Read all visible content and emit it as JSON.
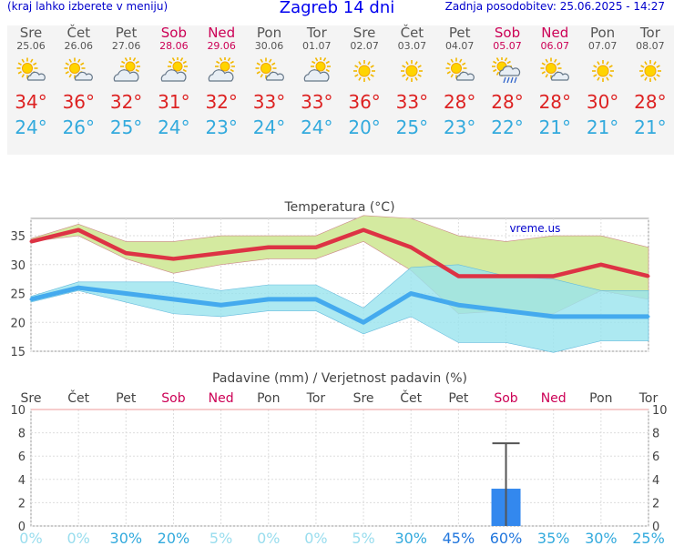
{
  "header": {
    "menu_hint": "(kraj lahko izberete v meniju)",
    "title": "Zagreb 14 dni",
    "updated": "Zadnja posodobitev: 25.06.2025 - 14:27"
  },
  "days": [
    {
      "name": "Sre",
      "date": "25.06",
      "weekend": false,
      "icon": "sun-cloud-icon",
      "max": "34°",
      "min": "24°"
    },
    {
      "name": "Čet",
      "date": "26.06",
      "weekend": false,
      "icon": "sun-cloud-icon",
      "max": "36°",
      "min": "26°"
    },
    {
      "name": "Pet",
      "date": "27.06",
      "weekend": false,
      "icon": "cloudy-sun-icon",
      "max": "32°",
      "min": "25°"
    },
    {
      "name": "Sob",
      "date": "28.06",
      "weekend": true,
      "icon": "cloudy-sun-icon",
      "max": "31°",
      "min": "24°"
    },
    {
      "name": "Ned",
      "date": "29.06",
      "weekend": true,
      "icon": "cloudy-sun-icon",
      "max": "32°",
      "min": "23°"
    },
    {
      "name": "Pon",
      "date": "30.06",
      "weekend": false,
      "icon": "sun-cloud-icon",
      "max": "33°",
      "min": "24°"
    },
    {
      "name": "Tor",
      "date": "01.07",
      "weekend": false,
      "icon": "cloudy-sun-icon",
      "max": "33°",
      "min": "24°"
    },
    {
      "name": "Sre",
      "date": "02.07",
      "weekend": false,
      "icon": "sun-icon",
      "max": "36°",
      "min": "20°"
    },
    {
      "name": "Čet",
      "date": "03.07",
      "weekend": false,
      "icon": "sun-icon",
      "max": "33°",
      "min": "25°"
    },
    {
      "name": "Pet",
      "date": "04.07",
      "weekend": false,
      "icon": "sun-cloud-icon",
      "max": "28°",
      "min": "23°"
    },
    {
      "name": "Sob",
      "date": "05.07",
      "weekend": true,
      "icon": "rain-shower-icon",
      "max": "28°",
      "min": "22°"
    },
    {
      "name": "Ned",
      "date": "06.07",
      "weekend": true,
      "icon": "sun-cloud-icon",
      "max": "28°",
      "min": "21°"
    },
    {
      "name": "Pon",
      "date": "07.07",
      "weekend": false,
      "icon": "sun-icon",
      "max": "30°",
      "min": "21°"
    },
    {
      "name": "Tor",
      "date": "08.07",
      "weekend": false,
      "icon": "sun-icon",
      "max": "28°",
      "min": "21°"
    }
  ],
  "colors": {
    "max": "#dd3344",
    "min": "#44aaee",
    "weekend": "#cc0055",
    "precip": "#3388ee",
    "max_band": "#d4eaa0",
    "min_band": "#99e4ee",
    "overlap": "#88d090"
  },
  "chart_data": [
    {
      "type": "line",
      "title": "Temperatura (°C)",
      "watermark": "vreme.us",
      "ylim": [
        15,
        38
      ],
      "yticks": [
        15,
        20,
        25,
        30,
        35
      ],
      "grid": true,
      "series": [
        {
          "name": "max",
          "values": [
            34,
            36,
            32,
            31,
            32,
            33,
            33,
            36,
            33,
            28,
            28,
            28,
            30,
            28
          ],
          "band_high": [
            34.5,
            37,
            34,
            34,
            35,
            35,
            35,
            38.5,
            38,
            35,
            34,
            35,
            35,
            33
          ],
          "band_low": [
            34,
            35,
            31,
            28.5,
            30,
            31,
            31,
            34,
            29,
            21.5,
            22,
            21.5,
            25.5,
            24
          ]
        },
        {
          "name": "min",
          "values": [
            24,
            26,
            25,
            24,
            23,
            24,
            24,
            20,
            25,
            23,
            22,
            21,
            21,
            21
          ],
          "band_high": [
            24.5,
            27,
            27,
            27,
            25.5,
            26.5,
            26.5,
            22.5,
            29.5,
            30,
            28,
            27.5,
            25.5,
            25.5
          ],
          "band_low": [
            23.5,
            25.5,
            23.5,
            21.5,
            21,
            22,
            22,
            18,
            21,
            16.5,
            16.5,
            14.8,
            16.8,
            16.8
          ]
        }
      ]
    },
    {
      "type": "bar",
      "title": "Padavine (mm) / Verjetnost padavin (%)",
      "categories": [
        "Sre",
        "Čet",
        "Pet",
        "Sob",
        "Ned",
        "Pon",
        "Tor",
        "Sre",
        "Čet",
        "Pet",
        "Sob",
        "Ned",
        "Pon",
        "Tor"
      ],
      "values": [
        0,
        0,
        0,
        0,
        0,
        0,
        0,
        0,
        0,
        0,
        3.2,
        0,
        0,
        0
      ],
      "error_high": [
        0,
        0,
        0,
        0,
        0,
        0,
        0,
        0,
        0,
        0,
        7.1,
        0,
        0,
        0
      ],
      "probability": [
        "0%",
        "0%",
        "30%",
        "20%",
        "5%",
        "0%",
        "0%",
        "5%",
        "30%",
        "45%",
        "60%",
        "35%",
        "30%",
        "25%"
      ],
      "prob_values": [
        0,
        0,
        30,
        20,
        5,
        0,
        0,
        5,
        30,
        45,
        60,
        35,
        30,
        25
      ],
      "ylim": [
        0,
        10
      ],
      "yticks": [
        0,
        2,
        4,
        6,
        8,
        10
      ]
    }
  ]
}
